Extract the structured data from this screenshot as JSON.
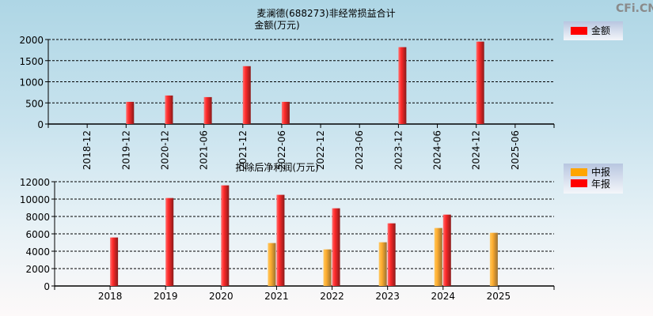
{
  "watermark": "CFi.CN",
  "chart_data": [
    {
      "type": "bar",
      "title": "麦澜德(688273)非经常损益合计",
      "ylabel": "金额(万元)",
      "categories": [
        "2018-12",
        "2019-12",
        "2020-12",
        "2021-06",
        "2021-12",
        "2022-06",
        "2022-12",
        "2023-06",
        "2023-12",
        "2024-06",
        "2024-12",
        "2025-06"
      ],
      "series": [
        {
          "name": "金额",
          "color": "#ff0000",
          "values": [
            null,
            525,
            675,
            637,
            1369,
            525,
            null,
            null,
            1819,
            null,
            1950,
            null
          ]
        }
      ],
      "ylim": [
        0,
        2000
      ],
      "yticks": [
        "0",
        "500",
        "1000",
        "1500",
        "2000"
      ],
      "grid": true,
      "legend": "top-right"
    },
    {
      "type": "bar",
      "title": "扣除后净利润(万元)",
      "categories": [
        "2018",
        "2019",
        "2020",
        "2021",
        "2022",
        "2023",
        "2024",
        "2025"
      ],
      "series": [
        {
          "name": "中报",
          "color": "#ffa500",
          "values": [
            null,
            null,
            null,
            4940,
            4210,
            5030,
            6670,
            6120
          ]
        },
        {
          "name": "年报",
          "color": "#ff0000",
          "values": [
            5580,
            10120,
            11580,
            10490,
            8940,
            7210,
            8210,
            null
          ]
        }
      ],
      "ylim": [
        0,
        12000
      ],
      "yticks": [
        "0",
        "2000",
        "4000",
        "6000",
        "8000",
        "10000",
        "12000"
      ],
      "grid": true,
      "legend": "top-right"
    }
  ]
}
